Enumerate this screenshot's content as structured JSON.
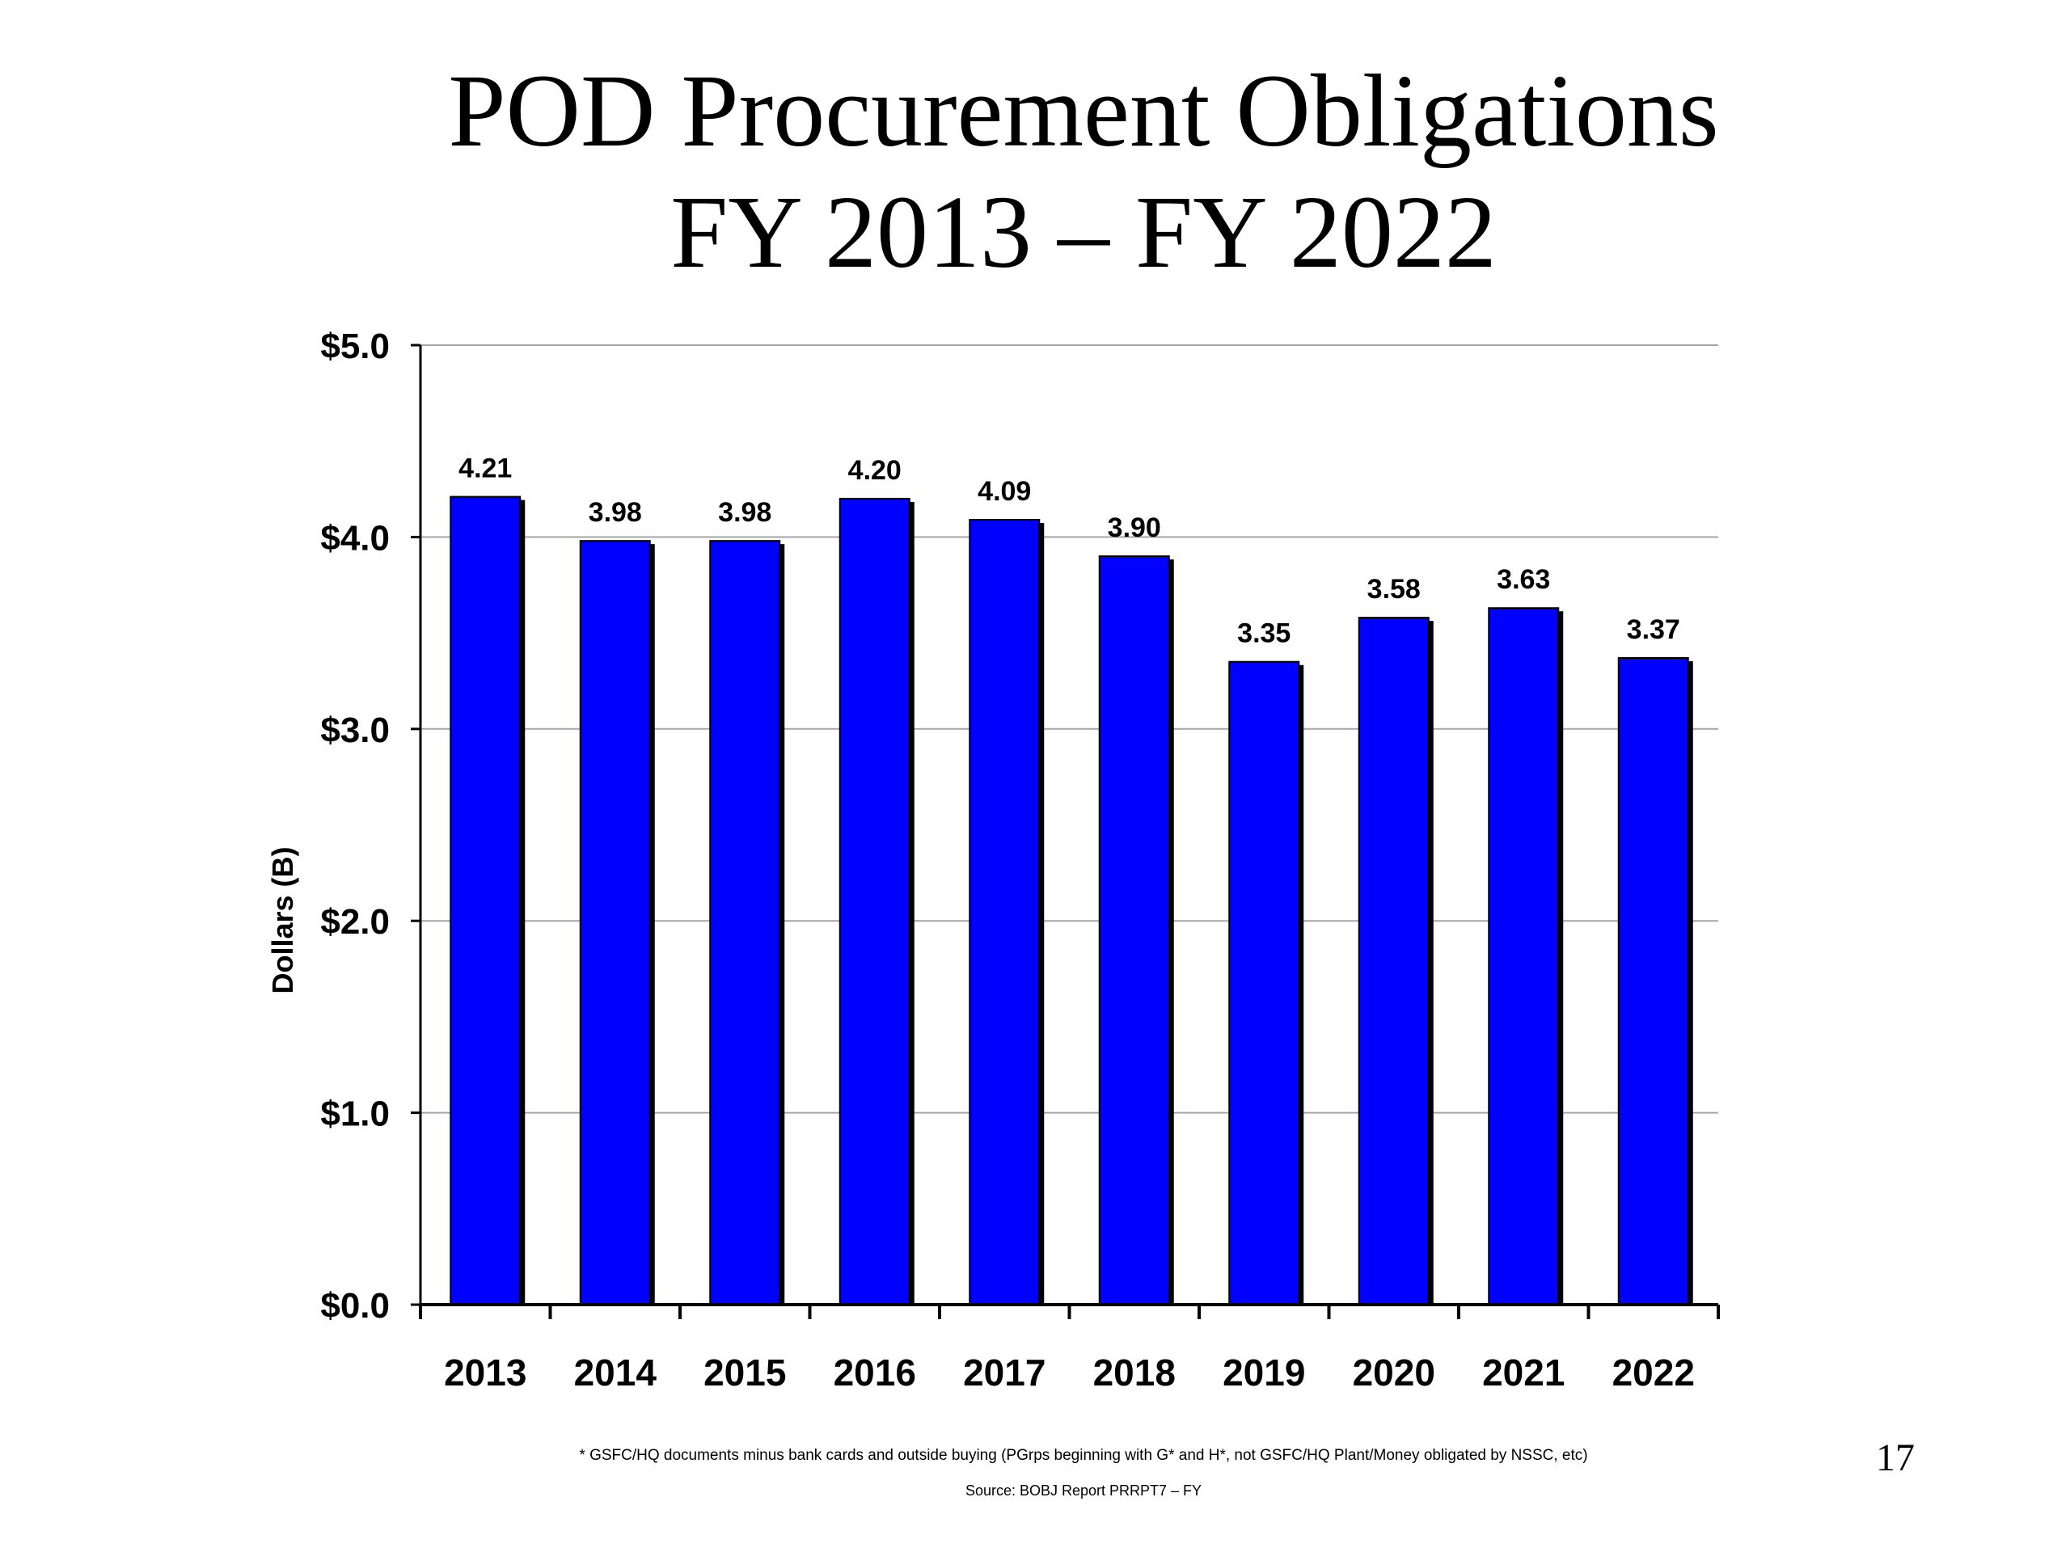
{
  "slide": {
    "title_line1": "POD Procurement Obligations",
    "title_line2": "FY 2013 – FY 2022",
    "footnote": "* GSFC/HQ documents minus bank cards and outside buying (PGrps beginning with G* and H*, not GSFC/HQ Plant/Money obligated by NSSC, etc)",
    "source": "Source: BOBJ Report PRRPT7 – FY",
    "page_number": "17"
  },
  "chart_data": {
    "type": "bar",
    "title": "",
    "xlabel": "",
    "ylabel": "Dollars (B)",
    "categories": [
      "2013",
      "2014",
      "2015",
      "2016",
      "2017",
      "2018",
      "2019",
      "2020",
      "2021",
      "2022"
    ],
    "values": [
      4.21,
      3.98,
      3.98,
      4.2,
      4.09,
      3.9,
      3.35,
      3.58,
      3.63,
      3.37
    ],
    "data_labels": [
      "4.21",
      "3.98",
      "3.98",
      "4.20",
      "4.09",
      "3.90",
      "3.35",
      "3.58",
      "3.63",
      "3.37"
    ],
    "ylim": [
      0,
      5
    ],
    "yticks": [
      0,
      1,
      2,
      3,
      4,
      5
    ],
    "ytick_labels": [
      "$0.0",
      "$1.0",
      "$2.0",
      "$3.0",
      "$4.0",
      "$5.0"
    ],
    "grid": true,
    "legend": "none",
    "bar_color": "#0000ff",
    "bar_shadow_color": "#000000",
    "gridline_color": "#a6a6a6"
  }
}
